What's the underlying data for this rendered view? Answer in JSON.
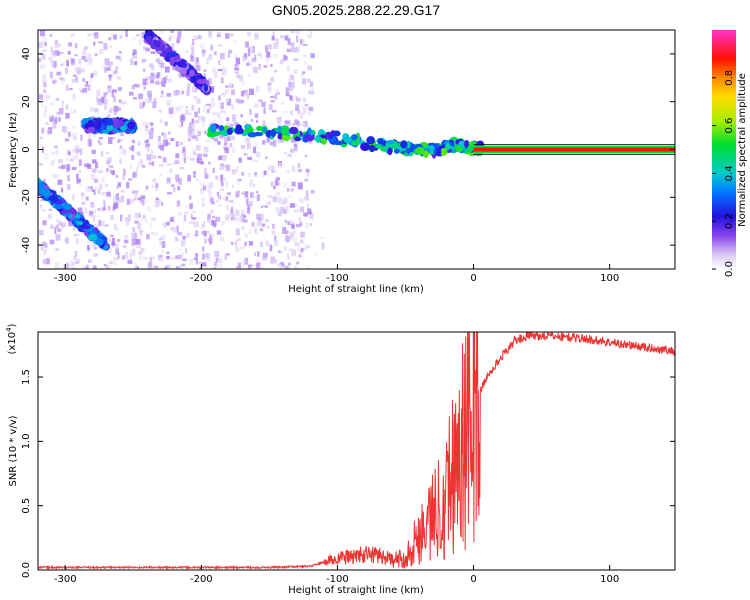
{
  "title": "GN05.2025.288.22.29.G17",
  "chart_data": [
    {
      "type": "heatmap",
      "xlabel": "Height of straight line (km)",
      "ylabel": "Frequency (Hz)",
      "xlim": [
        -320,
        148
      ],
      "ylim": [
        -50,
        50
      ],
      "xticks": [
        -300,
        -200,
        -100,
        0,
        100
      ],
      "yticks": [
        -40,
        -20,
        0,
        20,
        40
      ],
      "colorbar": {
        "label": "Normalized spectral amplitude",
        "ticks": [
          "0.0",
          "0.2",
          "0.4",
          "0.6",
          "0.8"
        ],
        "range": [
          0,
          1
        ]
      },
      "features": [
        {
          "name": "main-trace",
          "points": [
            [
              -195,
              8
            ],
            [
              -150,
              7
            ],
            [
              -120,
              6
            ],
            [
              -90,
              4
            ],
            [
              -60,
              1
            ],
            [
              -40,
              0
            ],
            [
              -25,
              0
            ],
            [
              -15,
              2
            ],
            [
              -5,
              1
            ],
            [
              5,
              0
            ]
          ],
          "amplitude": 0.45
        },
        {
          "name": "constant-line",
          "points": [
            [
              0,
              0
            ],
            [
              148,
              0
            ]
          ],
          "amplitude": 0.95
        },
        {
          "name": "upper-left-segment",
          "points": [
            [
              -285,
              10
            ],
            [
              -250,
              10
            ]
          ],
          "amplitude": 0.3
        },
        {
          "name": "lower-left-diagonal",
          "points": [
            [
              -320,
              -15
            ],
            [
              -270,
              -40
            ]
          ],
          "amplitude": 0.3
        },
        {
          "name": "upper-diagonal",
          "points": [
            [
              -240,
              48
            ],
            [
              -195,
              25
            ]
          ],
          "amplitude": 0.2
        }
      ]
    },
    {
      "type": "line",
      "xlabel": "Height of straight line (km)",
      "ylabel": "SNR (10 * v/v)",
      "multiplier": "(x10",
      "multiplier_exp": "4",
      "xlim": [
        -320,
        148
      ],
      "ylim": [
        0,
        1.85
      ],
      "xticks": [
        -300,
        -200,
        -100,
        0,
        100
      ],
      "yticks": [
        "0.0",
        "0.5",
        "1.0",
        "1.5"
      ],
      "line_color": "#ee3333",
      "envelope": {
        "x": [
          -320,
          -200,
          -150,
          -120,
          -110,
          -100,
          -80,
          -70,
          -60,
          -50,
          -45,
          -40,
          -35,
          -30,
          -25,
          -20,
          -15,
          -10,
          -5,
          0,
          10,
          20,
          30,
          40,
          60,
          80,
          100,
          120,
          148
        ],
        "y": [
          0.02,
          0.02,
          0.02,
          0.03,
          0.06,
          0.09,
          0.12,
          0.12,
          0.08,
          0.1,
          0.2,
          0.3,
          0.4,
          0.45,
          0.55,
          0.7,
          0.85,
          1.0,
          1.15,
          1.3,
          1.5,
          1.65,
          1.78,
          1.82,
          1.82,
          1.8,
          1.77,
          1.74,
          1.7
        ]
      }
    }
  ]
}
